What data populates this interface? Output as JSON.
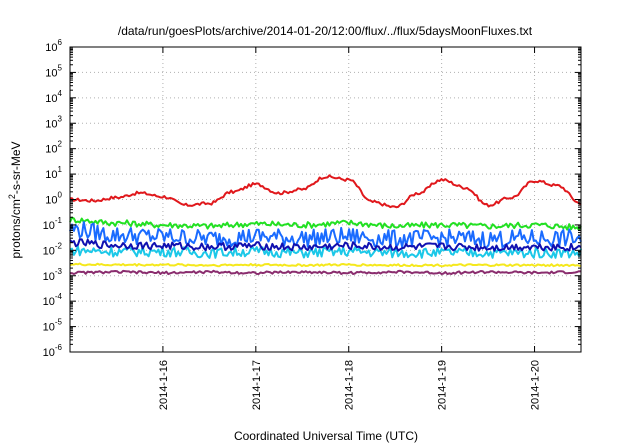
{
  "chart_data": {
    "type": "line",
    "title": "/data/run/goesPlots/archive/2014-01-20/12:00/flux/../flux/5daysMoonFluxes.txt",
    "xlabel": "Coordinated Universal Time (UTC)",
    "ylabel": {
      "prefix": "protons/cm",
      "superscript": "2",
      "suffix": "-s-sr-MeV"
    },
    "x_domain_days": [
      "2014-01-15T00:00",
      "2014-01-20T12:00"
    ],
    "x_ticks": [
      {
        "label": "2014-1-16",
        "date": "2014-01-16"
      },
      {
        "label": "2014-1-17",
        "date": "2014-01-17"
      },
      {
        "label": "2014-1-18",
        "date": "2014-01-18"
      },
      {
        "label": "2014-1-19",
        "date": "2014-01-19"
      },
      {
        "label": "2014-1-20",
        "date": "2014-01-20"
      }
    ],
    "y_scale": "log",
    "ylim": [
      1e-06,
      1000000.0
    ],
    "y_ticks": [
      {
        "base": "10",
        "exp": "6",
        "value": 1000000.0
      },
      {
        "base": "10",
        "exp": "5",
        "value": 100000.0
      },
      {
        "base": "10",
        "exp": "4",
        "value": 10000.0
      },
      {
        "base": "10",
        "exp": "3",
        "value": 1000.0
      },
      {
        "base": "10",
        "exp": "2",
        "value": 100.0
      },
      {
        "base": "10",
        "exp": "1",
        "value": 10.0
      },
      {
        "base": "10",
        "exp": "0",
        "value": 1.0
      },
      {
        "base": "10",
        "exp": "-1",
        "value": 0.1
      },
      {
        "base": "10",
        "exp": "-2",
        "value": 0.01
      },
      {
        "base": "10",
        "exp": "-3",
        "value": 0.001
      },
      {
        "base": "10",
        "exp": "-4",
        "value": 0.0001
      },
      {
        "base": "10",
        "exp": "-5",
        "value": 1e-05
      },
      {
        "base": "10",
        "exp": "-6",
        "value": 1e-06
      }
    ],
    "grid": true,
    "series": [
      {
        "color": "#e0181c",
        "x": [
          "2014-01-15T00:00",
          "2014-01-15T06:00",
          "2014-01-15T12:00",
          "2014-01-15T18:00",
          "2014-01-16T00:00",
          "2014-01-16T06:00",
          "2014-01-16T12:00",
          "2014-01-16T18:00",
          "2014-01-17T00:00",
          "2014-01-17T06:00",
          "2014-01-17T12:00",
          "2014-01-17T18:00",
          "2014-01-18T00:00",
          "2014-01-18T06:00",
          "2014-01-18T12:00",
          "2014-01-18T18:00",
          "2014-01-19T00:00",
          "2014-01-19T06:00",
          "2014-01-19T12:00",
          "2014-01-19T18:00",
          "2014-01-20T00:00",
          "2014-01-20T06:00",
          "2014-01-20T12:00"
        ],
        "values": [
          1.0,
          0.9,
          1.2,
          1.8,
          1.3,
          0.6,
          0.7,
          2.0,
          4.0,
          1.8,
          2.5,
          8.0,
          6.0,
          0.8,
          0.5,
          1.8,
          6.0,
          3.0,
          0.6,
          1.2,
          5.5,
          3.5,
          0.7
        ]
      },
      {
        "color": "#22e022",
        "x": [
          "2014-01-15T00:00",
          "2014-01-15T12:00",
          "2014-01-16T00:00",
          "2014-01-16T12:00",
          "2014-01-17T00:00",
          "2014-01-17T12:00",
          "2014-01-18T00:00",
          "2014-01-18T12:00",
          "2014-01-19T00:00",
          "2014-01-19T12:00",
          "2014-01-20T00:00",
          "2014-01-20T12:00"
        ],
        "values": [
          0.16,
          0.12,
          0.1,
          0.09,
          0.11,
          0.1,
          0.12,
          0.09,
          0.1,
          0.09,
          0.1,
          0.08
        ]
      },
      {
        "color": "#1a6bff",
        "x": [
          "2014-01-15T00:00",
          "2014-01-15T12:00",
          "2014-01-16T00:00",
          "2014-01-16T12:00",
          "2014-01-17T00:00",
          "2014-01-17T12:00",
          "2014-01-18T00:00",
          "2014-01-18T12:00",
          "2014-01-19T00:00",
          "2014-01-19T12:00",
          "2014-01-20T00:00",
          "2014-01-20T12:00"
        ],
        "values": [
          0.07,
          0.04,
          0.035,
          0.03,
          0.035,
          0.03,
          0.035,
          0.028,
          0.03,
          0.028,
          0.03,
          0.03
        ]
      },
      {
        "color": "#1cc8e8",
        "x": [
          "2014-01-15T00:00",
          "2014-01-15T12:00",
          "2014-01-16T00:00",
          "2014-01-16T12:00",
          "2014-01-17T00:00",
          "2014-01-17T12:00",
          "2014-01-18T00:00",
          "2014-01-18T12:00",
          "2014-01-19T00:00",
          "2014-01-19T12:00",
          "2014-01-20T00:00",
          "2014-01-20T12:00"
        ],
        "values": [
          0.01,
          0.009,
          0.009,
          0.008,
          0.009,
          0.008,
          0.009,
          0.008,
          0.008,
          0.008,
          0.008,
          0.008
        ]
      },
      {
        "color": "#1010b0",
        "x": [
          "2014-01-15T00:00",
          "2014-01-15T12:00",
          "2014-01-16T00:00",
          "2014-01-16T12:00",
          "2014-01-17T00:00",
          "2014-01-17T12:00",
          "2014-01-18T00:00",
          "2014-01-18T12:00",
          "2014-01-19T00:00",
          "2014-01-19T12:00",
          "2014-01-20T00:00",
          "2014-01-20T12:00"
        ],
        "values": [
          0.02,
          0.016,
          0.015,
          0.014,
          0.015,
          0.013,
          0.015,
          0.013,
          0.014,
          0.013,
          0.014,
          0.013
        ]
      },
      {
        "color": "#f5e81c",
        "x": [
          "2014-01-15T00:00",
          "2014-01-15T12:00",
          "2014-01-16T00:00",
          "2014-01-16T12:00",
          "2014-01-17T00:00",
          "2014-01-17T12:00",
          "2014-01-18T00:00",
          "2014-01-18T12:00",
          "2014-01-19T00:00",
          "2014-01-19T12:00",
          "2014-01-20T00:00",
          "2014-01-20T12:00"
        ],
        "values": [
          0.0028,
          0.0027,
          0.0027,
          0.0026,
          0.0027,
          0.0026,
          0.0027,
          0.0026,
          0.0026,
          0.0026,
          0.0026,
          0.0026
        ]
      },
      {
        "color": "#8a2d6e",
        "x": [
          "2014-01-15T00:00",
          "2014-01-15T12:00",
          "2014-01-16T00:00",
          "2014-01-16T12:00",
          "2014-01-17T00:00",
          "2014-01-17T12:00",
          "2014-01-18T00:00",
          "2014-01-18T12:00",
          "2014-01-19T00:00",
          "2014-01-19T12:00",
          "2014-01-20T00:00",
          "2014-01-20T12:00"
        ],
        "values": [
          0.0013,
          0.0014,
          0.0013,
          0.0014,
          0.0013,
          0.0014,
          0.0013,
          0.0014,
          0.0013,
          0.0014,
          0.0013,
          0.0014
        ]
      }
    ]
  }
}
